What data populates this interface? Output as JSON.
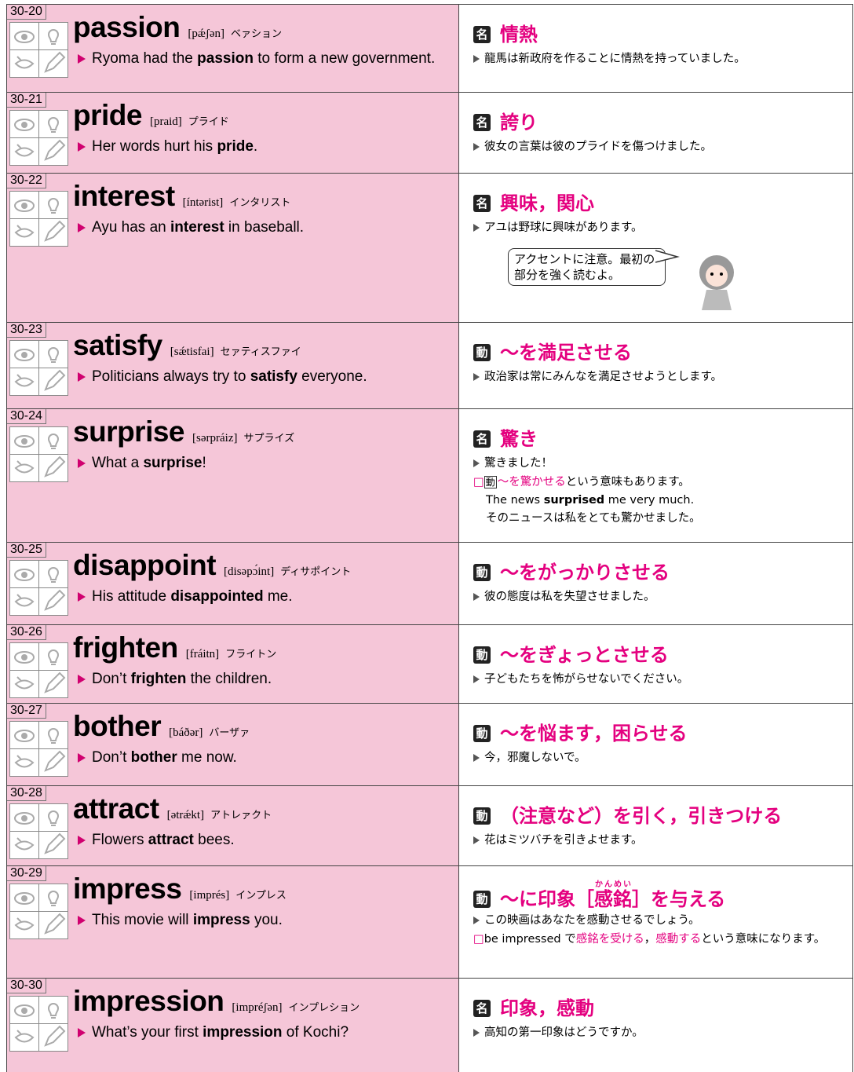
{
  "entries": [
    {
      "id": "30-20",
      "word": "passion",
      "ipa": "[pǽʃən]",
      "kana": "ベァション",
      "example": [
        "Ryoma had the ",
        "passion",
        " to form a new government."
      ],
      "pos": "名",
      "meaning": [
        "情熱"
      ],
      "translation": "龍馬は新政府を作ることに情熱を持っていました。"
    },
    {
      "id": "30-21",
      "word": "pride",
      "ipa": "[praid]",
      "kana": "プライド",
      "example": [
        "Her words hurt his ",
        "pride",
        "."
      ],
      "pos": "名",
      "meaning": [
        "誇り"
      ],
      "translation": "彼女の言葉は彼のプライドを傷つけました。"
    },
    {
      "id": "30-22",
      "word": "interest",
      "ipa": "[íntərist]",
      "kana": "インタリスト",
      "example": [
        "Ayu has an ",
        "interest",
        " in baseball."
      ],
      "pos": "名",
      "meaning": [
        "興味，関心"
      ],
      "translation": "アユは野球に興味があります。",
      "bubble": "アクセントに注意。最初の部分を強く読むよ。"
    },
    {
      "id": "30-23",
      "word": "satisfy",
      "ipa": "[sǽtisfai]",
      "kana": "セァティスファイ",
      "example": [
        "Politicians always try to ",
        "satisfy",
        " everyone."
      ],
      "pos": "動",
      "meaning": [
        "～を満足させる"
      ],
      "translation": "政治家は常にみんなを満足させようとします。"
    },
    {
      "id": "30-24",
      "word": "surprise",
      "ipa": "[sərpráiz]",
      "kana": "サプライズ",
      "example": [
        "What a ",
        "surprise",
        "!"
      ],
      "pos": "名",
      "meaning": [
        "驚き"
      ],
      "translation": "驚きました！",
      "note": [
        [
          "□",
          "動",
          "～を驚かせる",
          "という意味もあります。"
        ],
        [
          "The news ",
          "surprised",
          " me very much."
        ],
        [
          "そのニュースは私をとても驚かせました。"
        ]
      ]
    },
    {
      "id": "30-25",
      "word": "disappoint",
      "ipa": "[disəpɔ́int]",
      "kana": "ディサポイント",
      "example": [
        "His attitude ",
        "disappointed",
        " me."
      ],
      "pos": "動",
      "meaning": [
        "～をがっかりさせる"
      ],
      "translation": "彼の態度は私を失望させました。"
    },
    {
      "id": "30-26",
      "word": "frighten",
      "ipa": "[fráitn]",
      "kana": "フライトン",
      "example": [
        "Don’t ",
        "frighten",
        " the children."
      ],
      "pos": "動",
      "meaning": [
        "～をぎょっとさせる"
      ],
      "translation": "子どもたちを怖がらせないでください。"
    },
    {
      "id": "30-27",
      "word": "bother",
      "ipa": "[báðər]",
      "kana": "バーザァ",
      "example": [
        "Don’t ",
        "bother",
        " me now."
      ],
      "pos": "動",
      "meaning": [
        "～を悩ます，困らせる"
      ],
      "translation": "今，邪魔しないで。"
    },
    {
      "id": "30-28",
      "word": "attract",
      "ipa": "[ətrǽkt]",
      "kana": "アトレァクト",
      "example": [
        "Flowers ",
        "attract",
        " bees."
      ],
      "pos": "動",
      "meaning": [
        "（注意など）を引く，引きつける"
      ],
      "translation": "花はミツバチを引きよせます。"
    },
    {
      "id": "30-29",
      "word": "impress",
      "ipa": "[imprés]",
      "kana": "インプレス",
      "example": [
        "This movie will ",
        "impress",
        " you."
      ],
      "pos": "動",
      "meaning": [
        "～に印象［",
        "感銘",
        "］を与える"
      ],
      "ruby": "かんめい",
      "translation": "この映画はあなたを感動させるでしょう。",
      "note": [
        [
          "□",
          "be impressed で",
          "感銘を受ける",
          "，",
          "感動する",
          "という意味になります。"
        ]
      ]
    },
    {
      "id": "30-30",
      "word": "impression",
      "ipa": "[impréʃən]",
      "kana": "インプレション",
      "example": [
        "What’s your first ",
        "impression",
        " of Kochi?"
      ],
      "pos": "名",
      "meaning": [
        "印象，感動"
      ],
      "translation": "高知の第一印象はどうですか。"
    }
  ]
}
